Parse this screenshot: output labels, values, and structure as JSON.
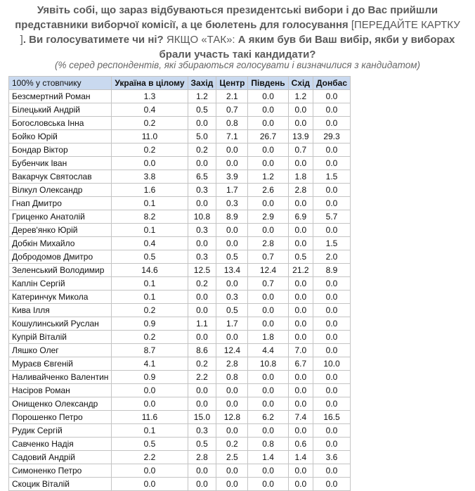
{
  "title_parts": [
    {
      "text": "Уявіть собі, що зараз відбуваються президентські вибори і до Вас прийшли представники виборчої комісії, а це бюлетень для голосування ",
      "bold": true
    },
    {
      "text": "[ПЕРЕДАЙТЕ КАРТКУ ]",
      "bold": false
    },
    {
      "text": ". Ви голосуватимете чи ні? ",
      "bold": true
    },
    {
      "text": "ЯКЩО «ТАК»: ",
      "bold": false
    },
    {
      "text": "А яким був би Ваш вибір, якби у виборах брали участь такі кандидати?",
      "bold": true
    }
  ],
  "subtitle": "(% серед респондентів, які збираються голосувати і визначилися з кандидатом)",
  "table": {
    "header": [
      "100% у стовпчику",
      "Україна в цілому",
      "Захід",
      "Центр",
      "Південь",
      "Схід",
      "Донбас"
    ],
    "rows": [
      [
        "Безсмертний Роман",
        "1.3",
        "1.2",
        "2.1",
        "0.0",
        "1.2",
        "0.0"
      ],
      [
        "Білецький Андрій",
        "0.4",
        "0.5",
        "0.7",
        "0.0",
        "0.0",
        "0.0"
      ],
      [
        "Богословська Інна",
        "0.2",
        "0.0",
        "0.8",
        "0.0",
        "0.0",
        "0.0"
      ],
      [
        "Бойко Юрій",
        "11.0",
        "5.0",
        "7.1",
        "26.7",
        "13.9",
        "29.3"
      ],
      [
        "Бондар Віктор",
        "0.2",
        "0.2",
        "0.0",
        "0.0",
        "0.7",
        "0.0"
      ],
      [
        "Бубенчик Іван",
        "0.0",
        "0.0",
        "0.0",
        "0.0",
        "0.0",
        "0.0"
      ],
      [
        "Вакарчук Святослав",
        "3.8",
        "6.5",
        "3.9",
        "1.2",
        "1.8",
        "1.5"
      ],
      [
        "Вілкул Олександр",
        "1.6",
        "0.3",
        "1.7",
        "2.6",
        "2.8",
        "0.0"
      ],
      [
        "Гнап Дмитро",
        "0.1",
        "0.0",
        "0.3",
        "0.0",
        "0.0",
        "0.0"
      ],
      [
        "Гриценко Анатолій",
        "8.2",
        "10.8",
        "8.9",
        "2.9",
        "6.9",
        "5.7"
      ],
      [
        "Дерев'янко Юрій",
        "0.1",
        "0.3",
        "0.0",
        "0.0",
        "0.0",
        "0.0"
      ],
      [
        "Добкін Михайло",
        "0.4",
        "0.0",
        "0.0",
        "2.8",
        "0.0",
        "1.5"
      ],
      [
        "Добродомов Дмитро",
        "0.5",
        "0.3",
        "0.5",
        "0.7",
        "0.5",
        "2.0"
      ],
      [
        "Зеленський Володимир",
        "14.6",
        "12.5",
        "13.4",
        "12.4",
        "21.2",
        "8.9"
      ],
      [
        "Каплін Сергій",
        "0.1",
        "0.2",
        "0.0",
        "0.7",
        "0.0",
        "0.0"
      ],
      [
        "Катеринчук Микола",
        "0.1",
        "0.0",
        "0.3",
        "0.0",
        "0.0",
        "0.0"
      ],
      [
        "Кива Ілля",
        "0.2",
        "0.0",
        "0.5",
        "0.0",
        "0.0",
        "0.0"
      ],
      [
        "Кошулинський Руслан",
        "0.9",
        "1.1",
        "1.7",
        "0.0",
        "0.0",
        "0.0"
      ],
      [
        "Купрій Віталій",
        "0.2",
        "0.0",
        "0.0",
        "1.8",
        "0.0",
        "0.0"
      ],
      [
        "Ляшко Олег",
        "8.7",
        "8.6",
        "12.4",
        "4.4",
        "7.0",
        "0.0"
      ],
      [
        "Мураєв Євгеній",
        "4.1",
        "0.2",
        "2.8",
        "10.8",
        "6.7",
        "10.0"
      ],
      [
        "Наливайченко Валентин",
        "0.9",
        "2.2",
        "0.8",
        "0.0",
        "0.0",
        "0.0"
      ],
      [
        "Насіров Роман",
        "0.0",
        "0.0",
        "0.0",
        "0.0",
        "0.0",
        "0.0"
      ],
      [
        "Онищенко Олександр",
        "0.0",
        "0.0",
        "0.0",
        "0.0",
        "0.0",
        "0.0"
      ],
      [
        "Порошенко Петро",
        "11.6",
        "15.0",
        "12.8",
        "6.2",
        "7.4",
        "16.5"
      ],
      [
        "Рудик Сергій",
        "0.1",
        "0.3",
        "0.0",
        "0.0",
        "0.0",
        "0.0"
      ],
      [
        "Савченко Надія",
        "0.5",
        "0.5",
        "0.2",
        "0.8",
        "0.6",
        "0.0"
      ],
      [
        "Садовий Андрій",
        "2.2",
        "2.8",
        "2.5",
        "1.4",
        "1.4",
        "3.6"
      ],
      [
        "Симоненко Петро",
        "0.0",
        "0.0",
        "0.0",
        "0.0",
        "0.0",
        "0.0"
      ],
      [
        "Скоцик Віталій",
        "0.0",
        "0.0",
        "0.0",
        "0.0",
        "0.0",
        "0.0"
      ]
    ]
  }
}
